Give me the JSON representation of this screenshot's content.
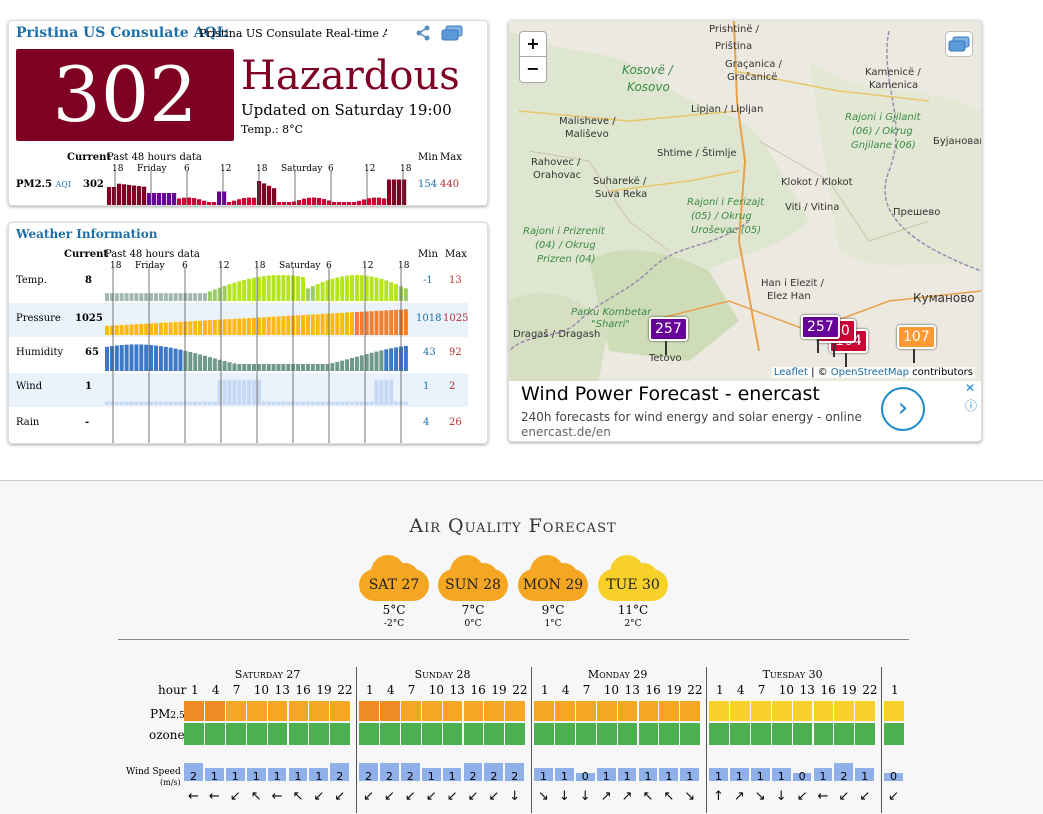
{
  "aqi": {
    "title": "Pristina US Consulate AQI:",
    "subtitle": "Pristina US Consulate Real-time Air Quality Index (AQI)",
    "value": "302",
    "level": "Hazardous",
    "updated": "Updated on Saturday 19:00",
    "temp": "Temp.: 8°C",
    "current_label": "Current",
    "past_label": "Past 48 hours data",
    "min_label": "Min",
    "max_label": "Max",
    "pm_label": "PM2.5",
    "aqi_suffix": "AQI",
    "pm_current": "302",
    "pm_min": "154",
    "pm_max": "440",
    "axis_ticks": [
      "18",
      "Friday",
      "6",
      "12",
      "18",
      "Saturday",
      "6",
      "12",
      "18"
    ],
    "colors": {
      "hazardous": "#7e0023",
      "very_unhealthy": "#660099",
      "unhealthy": "#cc0033"
    }
  },
  "weather": {
    "title": "Weather Information",
    "current_label": "Current",
    "past_label": "Past 48 hours data",
    "min_label": "Min",
    "max_label": "Max",
    "axis_ticks": [
      "18",
      "Friday",
      "6",
      "12",
      "18",
      "Saturday",
      "6",
      "12",
      "18"
    ],
    "rows": [
      {
        "label": "Temp.",
        "current": "8",
        "min": "-1",
        "max": "13"
      },
      {
        "label": "Pressure",
        "current": "1025",
        "min": "1018",
        "max": "1025"
      },
      {
        "label": "Humidity",
        "current": "65",
        "min": "43",
        "max": "92"
      },
      {
        "label": "Wind",
        "current": "1",
        "min": "1",
        "max": "2"
      },
      {
        "label": "Rain",
        "current": "-",
        "min": "4",
        "max": "26"
      }
    ]
  },
  "map": {
    "zoom_in": "+",
    "zoom_out": "−",
    "labels": [
      "Prishtinë /",
      "Priština",
      "Kosovë /",
      "Kosovo",
      "Graçanica /",
      "Gračanicë",
      "Kamenicë /",
      "Kamenica",
      "Malisheve /",
      "Mališevo",
      "Lipjan / Lipljan",
      "Rajoni i Gjilanit",
      "(06) / Okrug",
      "Gnjilane (06)",
      "Бујановац",
      "Rahovec /",
      "Orahovac",
      "Shtime / Štimlje",
      "Suharekë /",
      "Suva Reka",
      "Klokot / Klokot",
      "Rajoni i Ferizajt",
      "(05) / Okrug",
      "Uroševac (05)",
      "Viti / Vitina",
      "Прешево",
      "Rajoni i Prizrenit",
      "(04) / Okrug",
      "Prizren (04)",
      "Han i Elezit /",
      "Elez Han",
      "Куманово",
      "Parku Kombetar",
      "\"Sharri\"",
      "Dragaš / Dragash",
      "Tetovo"
    ],
    "markers": [
      {
        "value": "257",
        "color": "#660099"
      },
      {
        "value": "257",
        "color": "#660099"
      },
      {
        "value": "300",
        "color": "#cc0033"
      },
      {
        "value": "164",
        "color": "#cc0033"
      },
      {
        "value": "107",
        "color": "#ff9933"
      }
    ],
    "attribution": {
      "leaflet": "Leaflet",
      "sep": " | © ",
      "osm": "OpenStreetMap",
      "rest": " contributors"
    }
  },
  "ad": {
    "title": "Wind Power Forecast - enercast",
    "description": "240h forecasts for wind energy and solar energy - online",
    "url": "enercast.de/en",
    "button": "›",
    "close": "✕",
    "info": "ⓘ"
  },
  "forecast": {
    "title": "Air Quality Forecast",
    "days": [
      {
        "label": "SAT 27",
        "high": "5°C",
        "low": "-2°C",
        "color": "#f5a623"
      },
      {
        "label": "SUN 28",
        "high": "7°C",
        "low": "0°C",
        "color": "#f5a623"
      },
      {
        "label": "MON 29",
        "high": "9°C",
        "low": "1°C",
        "color": "#f5a623"
      },
      {
        "label": "TUE 30",
        "high": "11°C",
        "low": "2°C",
        "color": "#f8d02a"
      }
    ],
    "day_names": [
      "Saturday 27",
      "Sunday 28",
      "Monday 29",
      "Tuesday 30"
    ],
    "hour_label": "hour",
    "hours": [
      "1",
      "4",
      "7",
      "10",
      "13",
      "16",
      "19",
      "22"
    ],
    "last_hour": "1",
    "pm_label": "PM",
    "pm_sub": "2.5",
    "ozone_label": "ozone",
    "wind_label": "Wind Speed",
    "wind_unit": "(m/s)",
    "wind": [
      [
        "2",
        "1",
        "1",
        "1",
        "1",
        "1",
        "1",
        "2"
      ],
      [
        "2",
        "2",
        "2",
        "1",
        "1",
        "2",
        "2",
        "2"
      ],
      [
        "1",
        "1",
        "0",
        "1",
        "1",
        "1",
        "1",
        "1"
      ],
      [
        "1",
        "1",
        "1",
        "1",
        "0",
        "1",
        "2",
        "1"
      ],
      [
        "0"
      ]
    ],
    "arrows": [
      [
        "←",
        "←",
        "↙",
        "↖",
        "←",
        "↖",
        "↙",
        "↙"
      ],
      [
        "↙",
        "↙",
        "↙",
        "↙",
        "↙",
        "↙",
        "↙",
        "↓"
      ],
      [
        "↘",
        "↓",
        "↓",
        "↗",
        "↗",
        "↖",
        "↖",
        "↘"
      ],
      [
        "↑",
        "↗",
        "↘",
        "↓",
        "↙",
        "←",
        "↙",
        "↙"
      ],
      [
        "↙"
      ]
    ]
  }
}
